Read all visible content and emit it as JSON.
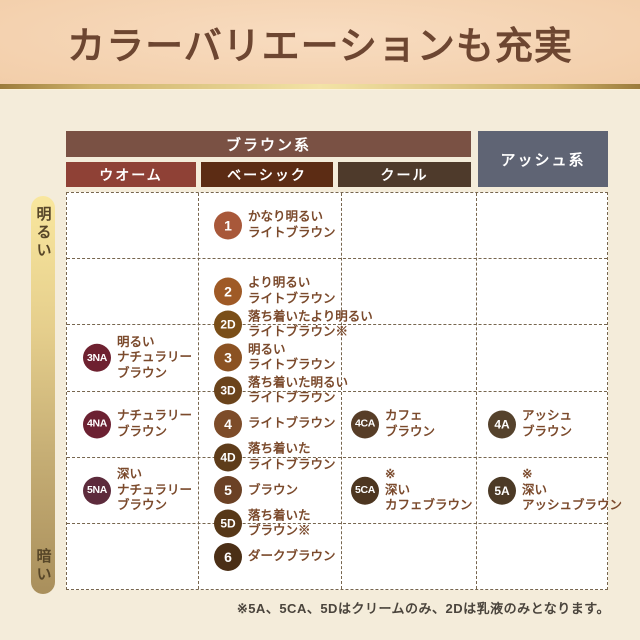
{
  "banner": {
    "title": "カラーバリエーションも充実"
  },
  "chart_data": {
    "type": "table",
    "title": "カラーバリエーションも充実",
    "column_groups": [
      {
        "label": "ブラウン系",
        "color": "#7a5144",
        "columns": [
          {
            "id": "warm",
            "label": "ウオーム",
            "color": "#8f4136"
          },
          {
            "id": "basic",
            "label": "ベーシック",
            "color": "#5c2c14"
          },
          {
            "id": "cool",
            "label": "クール",
            "color": "#4e3a2b"
          }
        ]
      },
      {
        "label": "アッシュ系",
        "color": "#5f6474",
        "columns": [
          {
            "id": "ash",
            "label": "アッシュ系",
            "color": "#5f6474"
          }
        ]
      }
    ],
    "y_axis": {
      "top_label": "明るい",
      "bottom_label": "暗い",
      "rows": 6
    },
    "entries": [
      {
        "code": "1",
        "column": "basic",
        "row": 1,
        "color": "#a8583a",
        "label": "かなり明るい\nライトブラウン"
      },
      {
        "code": "2",
        "column": "basic",
        "row": 2,
        "color": "#9f5a26",
        "label": "より明るい\nライトブラウン"
      },
      {
        "code": "2D",
        "column": "basic",
        "row": 2.5,
        "color": "#7a4e18",
        "label": "落ち着いたより明るい\nライトブラウン※"
      },
      {
        "code": "3",
        "column": "basic",
        "row": 3,
        "color": "#8b5222",
        "label": "明るい\nライトブラウン"
      },
      {
        "code": "3D",
        "column": "basic",
        "row": 3.5,
        "color": "#6b441c",
        "label": "落ち着いた明るい\nライトブラウン"
      },
      {
        "code": "4",
        "column": "basic",
        "row": 4,
        "color": "#7d4c29",
        "label": "ライトブラウン"
      },
      {
        "code": "4D",
        "column": "basic",
        "row": 4.5,
        "color": "#5e3c1a",
        "label": "落ち着いた\nライトブラウン"
      },
      {
        "code": "5",
        "column": "basic",
        "row": 5,
        "color": "#6b4125",
        "label": "ブラウン"
      },
      {
        "code": "5D",
        "column": "basic",
        "row": 5.5,
        "color": "#573818",
        "label": "落ち着いた\nブラウン※"
      },
      {
        "code": "6",
        "column": "basic",
        "row": 6,
        "color": "#4b2f16",
        "label": "ダークブラウン"
      },
      {
        "code": "3NA",
        "column": "warm",
        "row": 3,
        "color": "#6e2130",
        "label": "明るい\nナチュラリー\nブラウン"
      },
      {
        "code": "4NA",
        "column": "warm",
        "row": 4,
        "color": "#6c2132",
        "label": "ナチュラリー\nブラウン"
      },
      {
        "code": "5NA",
        "column": "warm",
        "row": 5,
        "color": "#5d2b3c",
        "label": "深い\nナチュラリー\nブラウン"
      },
      {
        "code": "4CA",
        "column": "cool",
        "row": 4,
        "color": "#573d27",
        "label": "カフェ\nブラウン"
      },
      {
        "code": "5CA",
        "column": "cool",
        "row": 5,
        "color": "#4d3620",
        "label": "※\n深い\nカフェブラウン"
      },
      {
        "code": "4A",
        "column": "ash",
        "row": 4,
        "color": "#55422c",
        "label": "アッシュ\nブラウン"
      },
      {
        "code": "5A",
        "column": "ash",
        "row": 5,
        "color": "#4c3a26",
        "label": "※\n深い\nアッシュブラウン"
      }
    ],
    "footnote": "※5A、5CA、5Dはクリームのみ、2Dは乳液のみとなります。"
  }
}
